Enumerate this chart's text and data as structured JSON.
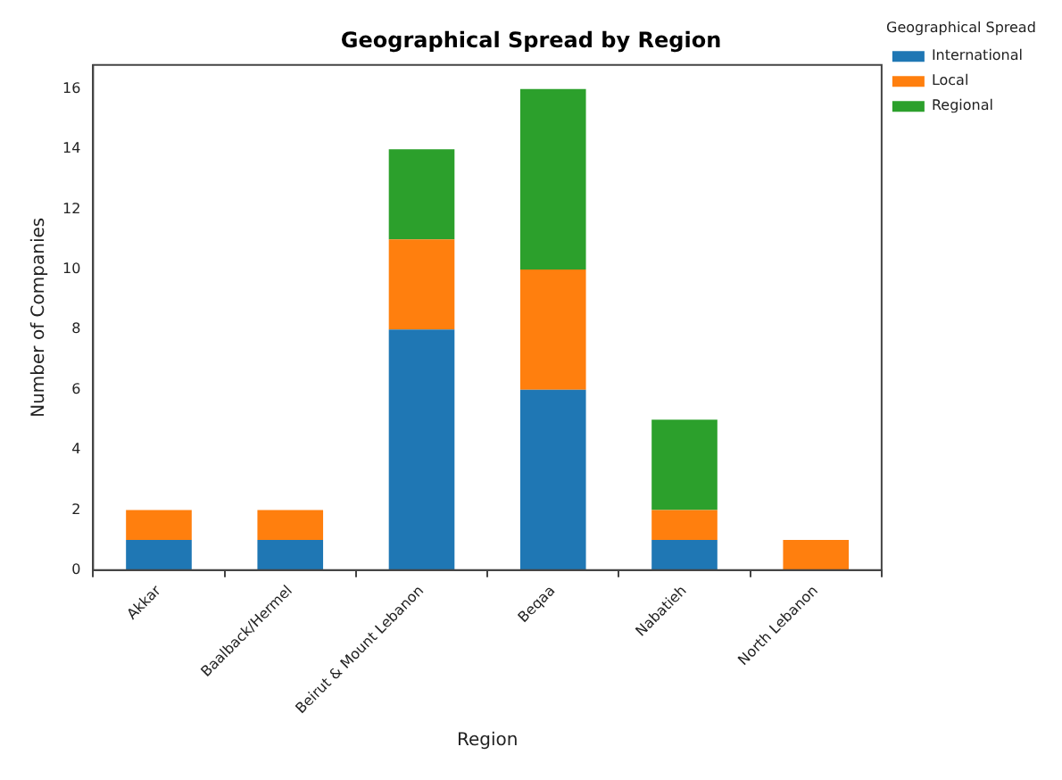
{
  "chart_data": {
    "type": "bar",
    "title": "Geographical Spread by Region",
    "xlabel": "Region",
    "ylabel": "Number of Companies",
    "legend_title": "Geographical Spread",
    "categories": [
      "Akkar",
      "Baalback/Hermel",
      "Beirut & Mount Lebanon",
      "Beqaa",
      "Nabatieh",
      "North Lebanon"
    ],
    "series": [
      {
        "name": "International",
        "color": "#1f77b4",
        "values": [
          1,
          1,
          8,
          6,
          1,
          0
        ]
      },
      {
        "name": "Local",
        "color": "#ff7f0e",
        "values": [
          1,
          1,
          3,
          4,
          1,
          1
        ]
      },
      {
        "name": "Regional",
        "color": "#2ca02c",
        "values": [
          0,
          0,
          3,
          6,
          3,
          0
        ]
      }
    ],
    "stacked": true,
    "ylim": [
      0,
      16.8
    ],
    "yticks": [
      0,
      2,
      4,
      6,
      8,
      10,
      12,
      14,
      16
    ],
    "grid": false,
    "legend": "top right"
  }
}
